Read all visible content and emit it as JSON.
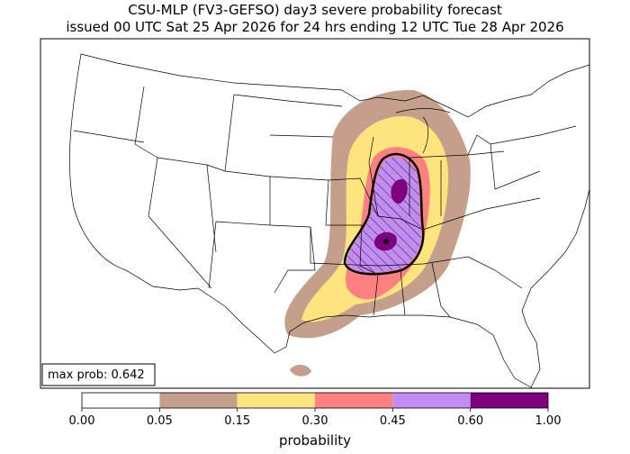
{
  "header": {
    "title": "CSU-MLP (FV3-GEFSO) day3 severe probability forecast",
    "subtitle": "issued 00 UTC Sat 25 Apr 2026 for 24 hrs ending 12 UTC Tue 28 Apr 2026"
  },
  "annotation": "max prob: 0.642",
  "colorbar": {
    "label": "probability",
    "colors": [
      "#ffffff",
      "#c4a08c",
      "#fde47e",
      "#fe8080",
      "#c38cf2",
      "#7e007e"
    ],
    "ticks": [
      {
        "value": 0,
        "label": "0.00"
      },
      {
        "value": 0.05,
        "label": "0.05"
      },
      {
        "value": 0.15,
        "label": "0.15"
      },
      {
        "value": 0.3,
        "label": "0.30"
      },
      {
        "value": 0.45,
        "label": "0.45"
      },
      {
        "value": 0.6,
        "label": "0.60"
      },
      {
        "value": 1,
        "label": "1.00"
      }
    ]
  }
}
